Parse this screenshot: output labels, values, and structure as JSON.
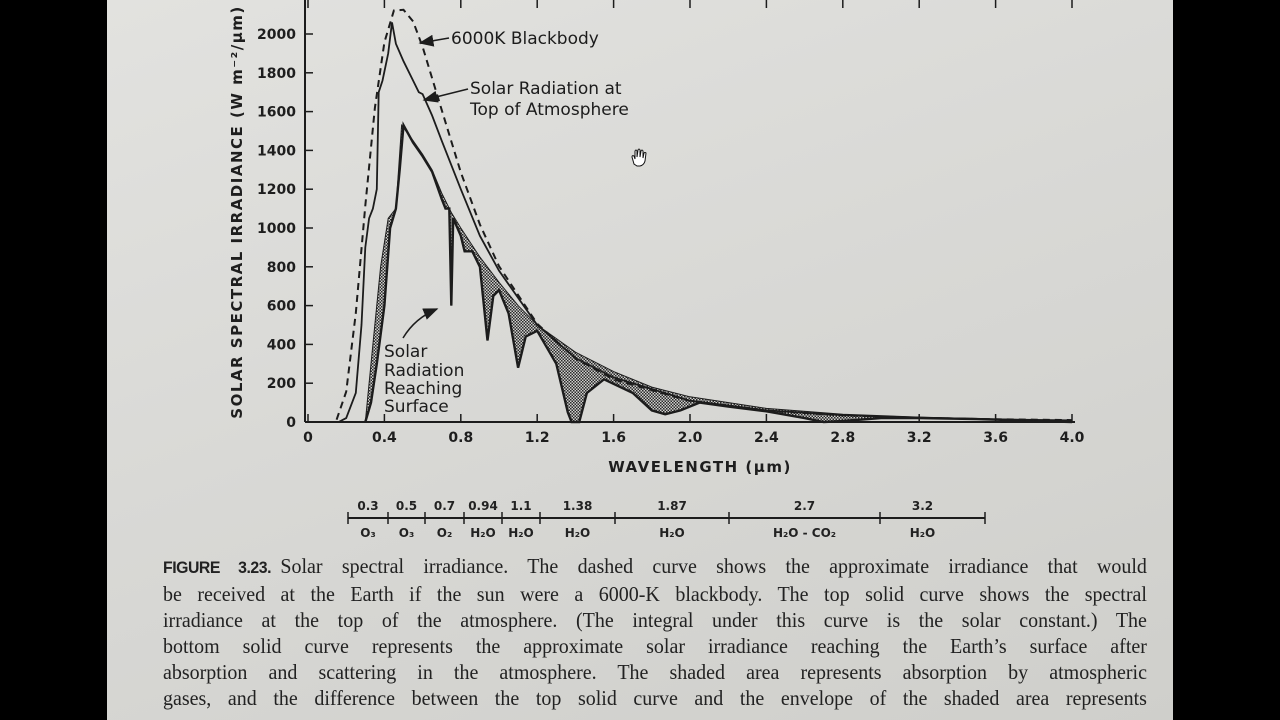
{
  "chart_data": {
    "type": "line",
    "title": "",
    "xlabel": "WAVELENGTH (μm)",
    "ylabel": "SOLAR SPECTRAL IRRADIANCE (W m⁻²/μm)",
    "xlim": [
      0,
      4.0
    ],
    "ylim": [
      0,
      2200
    ],
    "x_ticks": [
      "0",
      "0.4",
      "0.8",
      "1.2",
      "1.6",
      "2.0",
      "2.4",
      "2.8",
      "3.2",
      "3.6",
      "4.0"
    ],
    "y_ticks": [
      "0",
      "200",
      "400",
      "600",
      "800",
      "1000",
      "1200",
      "1400",
      "1600",
      "1800",
      "2000"
    ],
    "grid": false,
    "series": [
      {
        "name": "6000K Blackbody",
        "style": "dashed",
        "points": [
          [
            0.15,
            12
          ],
          [
            0.2,
            156
          ],
          [
            0.25,
            561
          ],
          [
            0.3,
            1115
          ],
          [
            0.35,
            1620
          ],
          [
            0.4,
            1957
          ],
          [
            0.45,
            2121
          ],
          [
            0.5,
            2125
          ],
          [
            0.55,
            2065
          ],
          [
            0.6,
            1934
          ],
          [
            0.7,
            1609
          ],
          [
            0.8,
            1287
          ],
          [
            0.9,
            1018
          ],
          [
            1.0,
            803
          ],
          [
            1.2,
            506
          ],
          [
            1.4,
            328
          ],
          [
            1.6,
            220
          ],
          [
            2.0,
            108
          ],
          [
            2.4,
            59
          ],
          [
            2.8,
            34
          ],
          [
            3.2,
            21
          ],
          [
            3.6,
            14
          ],
          [
            4.0,
            10
          ]
        ]
      },
      {
        "name": "Solar Radiation at Top of Atmosphere",
        "style": "solid",
        "points": [
          [
            0.16,
            0
          ],
          [
            0.2,
            20
          ],
          [
            0.25,
            150
          ],
          [
            0.28,
            500
          ],
          [
            0.3,
            900
          ],
          [
            0.32,
            1050
          ],
          [
            0.34,
            1100
          ],
          [
            0.36,
            1200
          ],
          [
            0.37,
            1700
          ],
          [
            0.39,
            1760
          ],
          [
            0.42,
            1900
          ],
          [
            0.44,
            2060
          ],
          [
            0.46,
            1950
          ],
          [
            0.5,
            1860
          ],
          [
            0.55,
            1760
          ],
          [
            0.58,
            1700
          ],
          [
            0.6,
            1690
          ],
          [
            0.65,
            1580
          ],
          [
            0.7,
            1450
          ],
          [
            0.8,
            1200
          ],
          [
            0.9,
            960
          ],
          [
            1.0,
            780
          ],
          [
            1.2,
            500
          ],
          [
            1.4,
            330
          ],
          [
            1.6,
            230
          ],
          [
            2.0,
            110
          ],
          [
            2.4,
            60
          ],
          [
            2.8,
            35
          ],
          [
            3.2,
            22
          ],
          [
            3.6,
            14
          ],
          [
            4.0,
            8
          ]
        ]
      },
      {
        "name": "Solar Radiation Reaching Surface",
        "style": "solid-bold",
        "points": [
          [
            0.3,
            0
          ],
          [
            0.33,
            100
          ],
          [
            0.36,
            300
          ],
          [
            0.4,
            600
          ],
          [
            0.43,
            1000
          ],
          [
            0.46,
            1100
          ],
          [
            0.48,
            1300
          ],
          [
            0.5,
            1530
          ],
          [
            0.55,
            1440
          ],
          [
            0.6,
            1370
          ],
          [
            0.65,
            1290
          ],
          [
            0.7,
            1150
          ],
          [
            0.72,
            1100
          ],
          [
            0.74,
            1100
          ],
          [
            0.75,
            600
          ],
          [
            0.76,
            1050
          ],
          [
            0.8,
            960
          ],
          [
            0.82,
            880
          ],
          [
            0.86,
            880
          ],
          [
            0.9,
            800
          ],
          [
            0.94,
            420
          ],
          [
            0.97,
            650
          ],
          [
            1.0,
            680
          ],
          [
            1.05,
            560
          ],
          [
            1.1,
            280
          ],
          [
            1.14,
            440
          ],
          [
            1.2,
            470
          ],
          [
            1.3,
            300
          ],
          [
            1.36,
            50
          ],
          [
            1.38,
            0
          ],
          [
            1.42,
            0
          ],
          [
            1.46,
            150
          ],
          [
            1.55,
            220
          ],
          [
            1.7,
            150
          ],
          [
            1.8,
            60
          ],
          [
            1.87,
            40
          ],
          [
            1.95,
            60
          ],
          [
            2.05,
            100
          ],
          [
            2.2,
            80
          ],
          [
            2.4,
            55
          ],
          [
            2.6,
            20
          ],
          [
            2.7,
            0
          ],
          [
            2.8,
            5
          ],
          [
            3.0,
            20
          ],
          [
            3.2,
            20
          ],
          [
            3.5,
            15
          ],
          [
            4.0,
            0
          ]
        ]
      },
      {
        "style": "shaded-envelope",
        "points": [
          [
            0.3,
            0
          ],
          [
            0.34,
            400
          ],
          [
            0.38,
            800
          ],
          [
            0.42,
            1050
          ],
          [
            0.46,
            1100
          ],
          [
            0.49,
            1530
          ],
          [
            0.55,
            1450
          ],
          [
            0.6,
            1380
          ],
          [
            0.65,
            1300
          ],
          [
            0.7,
            1180
          ],
          [
            0.75,
            1080
          ],
          [
            0.8,
            1000
          ],
          [
            0.9,
            850
          ],
          [
            1.0,
            720
          ],
          [
            1.1,
            600
          ],
          [
            1.2,
            500
          ],
          [
            1.4,
            360
          ],
          [
            1.6,
            260
          ],
          [
            1.8,
            180
          ],
          [
            2.0,
            130
          ],
          [
            2.4,
            70
          ],
          [
            2.8,
            40
          ],
          [
            3.2,
            25
          ],
          [
            3.6,
            15
          ],
          [
            4.0,
            6
          ]
        ]
      }
    ],
    "annotations": {
      "blackbody": "6000K Blackbody",
      "toa_line1": "Solar Radiation at",
      "toa_line2": "Top of Atmosphere",
      "surface_line1": "Solar",
      "surface_line2": "Radiation",
      "surface_line3": "Reaching",
      "surface_line4": "Surface"
    },
    "absorption_bands": [
      {
        "wavelength": "0.3",
        "gas": "O₃"
      },
      {
        "wavelength": "0.5",
        "gas": "O₃"
      },
      {
        "wavelength": "0.7",
        "gas": "O₂"
      },
      {
        "wavelength": "0.94",
        "gas": "H₂O"
      },
      {
        "wavelength": "1.1",
        "gas": "H₂O"
      },
      {
        "wavelength": "1.38",
        "gas": "H₂O"
      },
      {
        "wavelength": "1.87",
        "gas": "H₂O"
      },
      {
        "wavelength": "2.7",
        "gas": "H₂O - CO₂"
      },
      {
        "wavelength": "3.2",
        "gas": "H₂O"
      }
    ],
    "colors": {
      "ink": "#1c1c1c",
      "paper": "#dcdcd9"
    }
  },
  "caption": {
    "label": "FIGURE 3.23.",
    "lines": [
      "Solar spectral irradiance. The dashed curve shows the approximate irradiance that would",
      "be received at the Earth if the sun were a 6000-K blackbody. The top solid curve shows the spectral",
      "irradiance at the top of the atmosphere. (The integral under this curve is the solar constant.) The",
      "bottom solid curve represents the approximate solar irradiance reaching the Earth’s surface after",
      "absorption and scattering in the atmosphere. The shaded area represents absorption by atmospheric",
      "gases, and the difference between the top solid curve and the envelope of the shaded area represents"
    ]
  }
}
